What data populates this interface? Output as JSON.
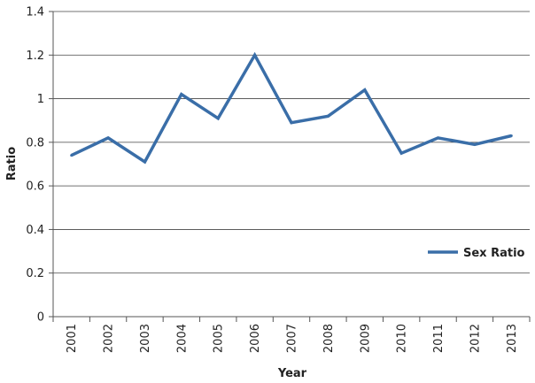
{
  "chart_data": {
    "type": "line",
    "title": "",
    "xlabel": "Year",
    "ylabel": "Ratio",
    "ylim": [
      0,
      1.4
    ],
    "yticks": [
      "0",
      "0.2",
      "0.4",
      "0.6",
      "0.8",
      "1",
      "1.2",
      "1.4"
    ],
    "categories": [
      "2001",
      "2002",
      "2003",
      "2004",
      "2005",
      "2006",
      "2007",
      "2008",
      "2009",
      "2010",
      "2011",
      "2012",
      "2013"
    ],
    "series": [
      {
        "name": "Sex Ratio",
        "color": "#3a6ea8",
        "values": [
          0.74,
          0.82,
          0.71,
          1.02,
          0.91,
          1.2,
          0.89,
          0.92,
          1.04,
          0.75,
          0.82,
          0.79,
          0.83
        ]
      }
    ],
    "grid": true,
    "legend_position": "right"
  }
}
